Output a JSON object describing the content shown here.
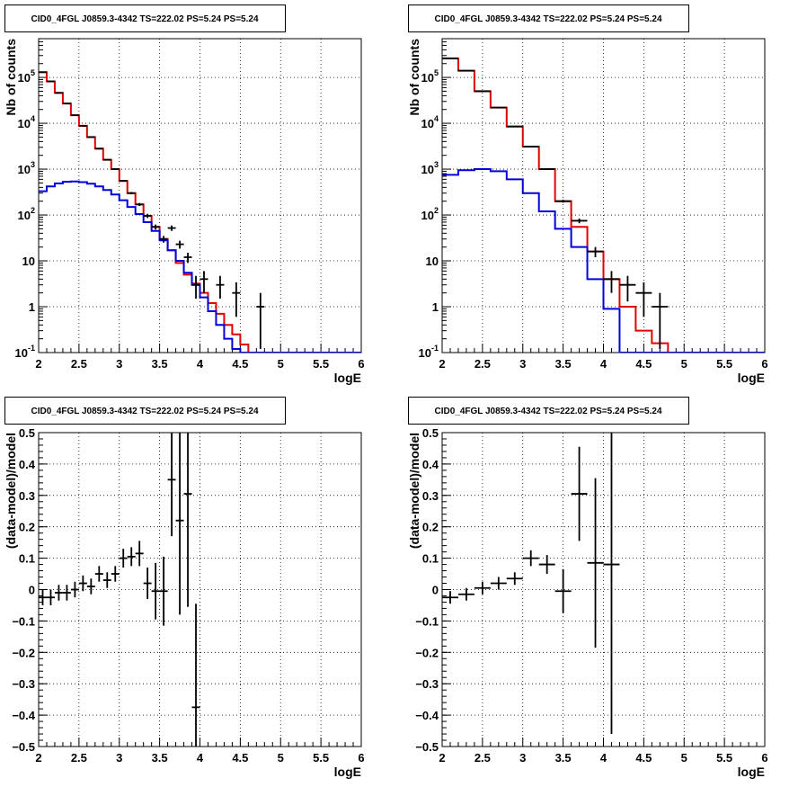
{
  "chart_data": [
    {
      "type": "histogram",
      "title": "CID0_4FGL J0859.3-4342 TS=222.02 PS=5.24 PS=5.24",
      "xlabel": "logE",
      "ylabel": "Nb of counts",
      "xlim": [
        2,
        6
      ],
      "ylim": [
        0.1,
        700000
      ],
      "log_y": true,
      "grid": true,
      "x_ticks": [
        "2",
        "2.5",
        "3",
        "3.5",
        "4",
        "4.5",
        "5",
        "5.5",
        "6"
      ],
      "y_ticks": [
        "10^-1",
        "1",
        "10",
        "10^2",
        "10^3",
        "10^4",
        "10^5"
      ],
      "edges": [
        2.0,
        2.1,
        2.2,
        2.3,
        2.4,
        2.5,
        2.6,
        2.7,
        2.8,
        2.9,
        3.0,
        3.1,
        3.2,
        3.3,
        3.4,
        3.5,
        3.6,
        3.7,
        3.8,
        3.9,
        4.0,
        4.1,
        4.2,
        4.3,
        4.4,
        4.5,
        4.6,
        4.7,
        4.8,
        4.9,
        5.0,
        5.1,
        5.2,
        5.3,
        5.4,
        5.5,
        5.6,
        5.7,
        5.8,
        5.9,
        6.0
      ],
      "series": [
        {
          "color": "#e00000",
          "values": [
            130000,
            82000,
            46000,
            27000,
            15000,
            8800,
            5000,
            2800,
            1600,
            1000,
            550,
            300,
            170,
            96,
            55,
            30,
            17,
            9,
            5,
            3.2,
            2,
            1.2,
            0.7,
            0.4,
            0.25,
            0.15,
            0.1,
            0.1,
            0.1,
            0.1,
            0.1,
            0.1,
            0.1,
            0.1,
            0.1,
            0.1,
            0.1,
            0.1,
            0.1,
            0.1
          ]
        },
        {
          "color": "#0000dd",
          "values": [
            330,
            420,
            490,
            530,
            540,
            520,
            480,
            420,
            350,
            280,
            210,
            150,
            105,
            70,
            45,
            28,
            17,
            10,
            5.5,
            3,
            1.6,
            0.8,
            0.4,
            0.2,
            0.12,
            0.1,
            0.1,
            0.1,
            0.1,
            0.1,
            0.1,
            0.1,
            0.1,
            0.1,
            0.1,
            0.1,
            0.1,
            0.1,
            0.1,
            0.1
          ]
        }
      ],
      "points": [
        {
          "x": 2.05,
          "y": 130000,
          "ylo": 129600,
          "yhi": 130400
        },
        {
          "x": 2.15,
          "y": 82000,
          "ylo": 81700,
          "yhi": 82300
        },
        {
          "x": 2.25,
          "y": 46000,
          "ylo": 45800,
          "yhi": 46200
        },
        {
          "x": 2.35,
          "y": 27000,
          "ylo": 26800,
          "yhi": 27200
        },
        {
          "x": 2.45,
          "y": 15000,
          "ylo": 14880,
          "yhi": 15120
        },
        {
          "x": 2.55,
          "y": 8800,
          "ylo": 8700,
          "yhi": 8900
        },
        {
          "x": 2.65,
          "y": 5000,
          "ylo": 4930,
          "yhi": 5070
        },
        {
          "x": 2.75,
          "y": 2800,
          "ylo": 2750,
          "yhi": 2850
        },
        {
          "x": 2.85,
          "y": 1600,
          "ylo": 1560,
          "yhi": 1640
        },
        {
          "x": 2.95,
          "y": 1000,
          "ylo": 970,
          "yhi": 1030
        },
        {
          "x": 3.05,
          "y": 560,
          "ylo": 536,
          "yhi": 584
        },
        {
          "x": 3.15,
          "y": 300,
          "ylo": 283,
          "yhi": 317
        },
        {
          "x": 3.25,
          "y": 170,
          "ylo": 157,
          "yhi": 183
        },
        {
          "x": 3.35,
          "y": 96,
          "ylo": 86,
          "yhi": 106
        },
        {
          "x": 3.45,
          "y": 55,
          "ylo": 48,
          "yhi": 62
        },
        {
          "x": 3.55,
          "y": 30,
          "ylo": 25,
          "yhi": 35
        },
        {
          "x": 3.65,
          "y": 52,
          "ylo": 45,
          "yhi": 59
        },
        {
          "x": 3.75,
          "y": 23,
          "ylo": 18.5,
          "yhi": 27.5
        },
        {
          "x": 3.85,
          "y": 12,
          "ylo": 9,
          "yhi": 15
        },
        {
          "x": 3.95,
          "y": 3,
          "ylo": 1.5,
          "yhi": 4.7
        },
        {
          "x": 4.05,
          "y": 4,
          "ylo": 2,
          "yhi": 6
        },
        {
          "x": 4.25,
          "y": 3,
          "ylo": 1.5,
          "yhi": 4.7
        },
        {
          "x": 4.45,
          "y": 2,
          "ylo": 0.6,
          "yhi": 3.4
        },
        {
          "x": 4.75,
          "y": 1,
          "ylo": 0.12,
          "yhi": 2
        }
      ]
    },
    {
      "type": "histogram",
      "title": "CID0_4FGL J0859.3-4342 TS=222.02 PS=5.24 PS=5.24",
      "xlabel": "logE",
      "ylabel": "Nb of counts",
      "xlim": [
        2,
        6
      ],
      "ylim": [
        0.1,
        700000
      ],
      "log_y": true,
      "grid": true,
      "x_ticks": [
        "2",
        "2.5",
        "3",
        "3.5",
        "4",
        "4.5",
        "5",
        "5.5",
        "6"
      ],
      "y_ticks": [
        "10^-1",
        "1",
        "10",
        "10^2",
        "10^3",
        "10^4",
        "10^5"
      ],
      "edges": [
        2.0,
        2.2,
        2.4,
        2.6,
        2.8,
        3.0,
        3.2,
        3.4,
        3.6,
        3.8,
        4.0,
        4.2,
        4.4,
        4.6,
        4.8,
        5.0,
        5.2,
        5.4,
        5.6,
        5.8,
        6.0
      ],
      "series": [
        {
          "color": "#e00000",
          "values": [
            260000,
            140000,
            50000,
            22000,
            8500,
            3100,
            1000,
            200,
            55,
            16,
            4,
            1,
            0.3,
            0.16,
            0.1,
            0.1,
            0.1,
            0.1,
            0.1,
            0.1
          ]
        },
        {
          "color": "#0000dd",
          "values": [
            750,
            950,
            1000,
            900,
            600,
            300,
            120,
            50,
            20,
            4,
            0.9,
            0.1,
            0.1,
            0.1,
            0.1,
            0.1,
            0.1,
            0.1,
            0.1,
            0.1
          ]
        }
      ],
      "points": [
        {
          "x": 2.1,
          "y": 260000,
          "ylo": 259500,
          "yhi": 260500
        },
        {
          "x": 2.3,
          "y": 140000,
          "ylo": 139600,
          "yhi": 140400
        },
        {
          "x": 2.5,
          "y": 50000,
          "ylo": 49800,
          "yhi": 50200
        },
        {
          "x": 2.7,
          "y": 22000,
          "ylo": 21850,
          "yhi": 22150
        },
        {
          "x": 2.9,
          "y": 8500,
          "ylo": 8400,
          "yhi": 8600
        },
        {
          "x": 3.1,
          "y": 3100,
          "ylo": 3040,
          "yhi": 3160
        },
        {
          "x": 3.3,
          "y": 1000,
          "ylo": 970,
          "yhi": 1030
        },
        {
          "x": 3.5,
          "y": 200,
          "ylo": 186,
          "yhi": 214
        },
        {
          "x": 3.7,
          "y": 75,
          "ylo": 66,
          "yhi": 84
        },
        {
          "x": 3.9,
          "y": 16,
          "ylo": 12,
          "yhi": 20
        },
        {
          "x": 4.1,
          "y": 4,
          "ylo": 2,
          "yhi": 6
        },
        {
          "x": 4.3,
          "y": 3,
          "ylo": 1.3,
          "yhi": 4.7
        },
        {
          "x": 4.5,
          "y": 2,
          "ylo": 0.6,
          "yhi": 3.4
        },
        {
          "x": 4.7,
          "y": 1,
          "ylo": 0.12,
          "yhi": 2
        }
      ]
    },
    {
      "type": "scatter",
      "title": "CID0_4FGL J0859.3-4342 TS=222.02 PS=5.24 PS=5.24",
      "xlabel": "logE",
      "ylabel": "(data-model)/model",
      "xlim": [
        2,
        6
      ],
      "ylim": [
        -0.5,
        0.5
      ],
      "grid": true,
      "x_ticks": [
        "2",
        "2.5",
        "3",
        "3.5",
        "4",
        "4.5",
        "5",
        "5.5",
        "6"
      ],
      "y_ticks": [
        "-0.5",
        "-0.4",
        "-0.3",
        "-0.2",
        "-0.1",
        "0",
        "0.1",
        "0.2",
        "0.3",
        "0.4",
        "0.5"
      ],
      "bin_halfwidth": 0.05,
      "points": [
        {
          "x": 2.05,
          "y": -0.025,
          "yerr": 0.025
        },
        {
          "x": 2.15,
          "y": -0.025,
          "yerr": 0.025
        },
        {
          "x": 2.25,
          "y": -0.01,
          "yerr": 0.025
        },
        {
          "x": 2.35,
          "y": -0.01,
          "yerr": 0.025
        },
        {
          "x": 2.45,
          "y": 0.0,
          "yerr": 0.025
        },
        {
          "x": 2.55,
          "y": 0.02,
          "yerr": 0.025
        },
        {
          "x": 2.65,
          "y": 0.01,
          "yerr": 0.025
        },
        {
          "x": 2.75,
          "y": 0.05,
          "yerr": 0.025
        },
        {
          "x": 2.85,
          "y": 0.03,
          "yerr": 0.025
        },
        {
          "x": 2.95,
          "y": 0.05,
          "yerr": 0.025
        },
        {
          "x": 3.05,
          "y": 0.1,
          "yerr": 0.03
        },
        {
          "x": 3.15,
          "y": 0.105,
          "yerr": 0.03
        },
        {
          "x": 3.25,
          "y": 0.115,
          "yerr": 0.04
        },
        {
          "x": 3.35,
          "y": 0.02,
          "yerr": 0.05
        },
        {
          "x": 3.45,
          "y": -0.005,
          "yerr": 0.09
        },
        {
          "x": 3.55,
          "y": -0.005,
          "yerr": 0.11
        },
        {
          "x": 3.65,
          "y": 0.35,
          "yerr": 0.18
        },
        {
          "x": 3.75,
          "y": 0.22,
          "yerr": 0.3
        },
        {
          "x": 3.85,
          "y": 0.305,
          "yerr": 0.36
        },
        {
          "x": 3.95,
          "y": -0.375,
          "yerr": 0.33
        }
      ]
    },
    {
      "type": "scatter",
      "title": "CID0_4FGL J0859.3-4342 TS=222.02 PS=5.24 PS=5.24",
      "xlabel": "logE",
      "ylabel": "(data-model)/model",
      "xlim": [
        2,
        6
      ],
      "ylim": [
        -0.5,
        0.5
      ],
      "grid": true,
      "x_ticks": [
        "2",
        "2.5",
        "3",
        "3.5",
        "4",
        "4.5",
        "5",
        "5.5",
        "6"
      ],
      "y_ticks": [
        "-0.5",
        "-0.4",
        "-0.3",
        "-0.2",
        "-0.1",
        "0",
        "0.1",
        "0.2",
        "0.3",
        "0.4",
        "0.5"
      ],
      "bin_halfwidth": 0.1,
      "points": [
        {
          "x": 2.1,
          "y": -0.025,
          "yerr": 0.02
        },
        {
          "x": 2.3,
          "y": -0.015,
          "yerr": 0.02
        },
        {
          "x": 2.5,
          "y": 0.005,
          "yerr": 0.02
        },
        {
          "x": 2.7,
          "y": 0.02,
          "yerr": 0.02
        },
        {
          "x": 2.9,
          "y": 0.035,
          "yerr": 0.02
        },
        {
          "x": 3.1,
          "y": 0.1,
          "yerr": 0.025
        },
        {
          "x": 3.3,
          "y": 0.08,
          "yerr": 0.03
        },
        {
          "x": 3.5,
          "y": -0.005,
          "yerr": 0.07
        },
        {
          "x": 3.7,
          "y": 0.305,
          "yerr": 0.15
        },
        {
          "x": 3.9,
          "y": 0.085,
          "yerr": 0.27
        },
        {
          "x": 4.1,
          "y": 0.08,
          "yerr": 0.54
        }
      ]
    }
  ]
}
